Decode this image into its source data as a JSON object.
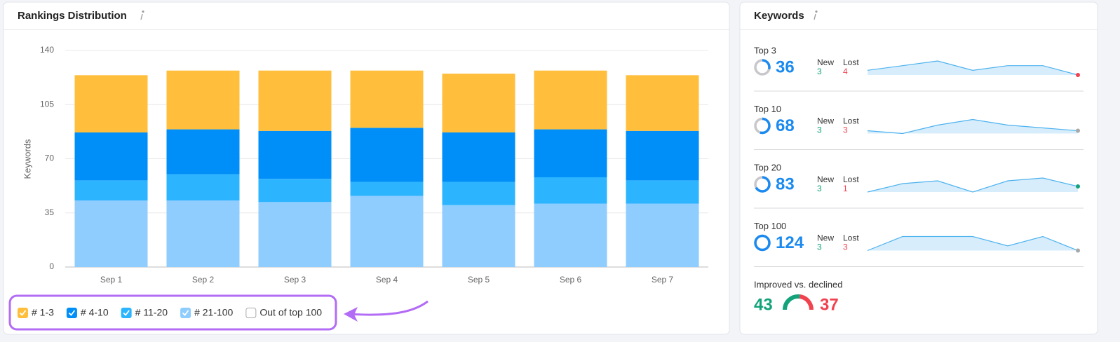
{
  "chart_data": {
    "type": "bar",
    "stacked": true,
    "title": "Rankings Distribution",
    "y_label": "Keywords",
    "categories": [
      "Sep 1",
      "Sep 2",
      "Sep 3",
      "Sep 4",
      "Sep 5",
      "Sep 6",
      "Sep 7"
    ],
    "series": [
      {
        "name": "# 1-3",
        "color": "#ffbf3c",
        "values": [
          37,
          38,
          39,
          37,
          38,
          38,
          36
        ]
      },
      {
        "name": "# 4-10",
        "color": "#008ff8",
        "values": [
          31,
          29,
          31,
          35,
          32,
          31,
          32
        ]
      },
      {
        "name": "# 11-20",
        "color": "#2db4ff",
        "values": [
          13,
          17,
          15,
          9,
          15,
          17,
          15
        ]
      },
      {
        "name": "# 21-100",
        "color": "#8fcdff",
        "values": [
          43,
          43,
          42,
          46,
          40,
          41,
          41
        ]
      }
    ],
    "legend_extra": "Out of top 100",
    "ylim": [
      0,
      140
    ],
    "yticks": [
      0,
      35,
      70,
      105,
      140
    ],
    "grid": true
  },
  "keywords": {
    "title": "Keywords",
    "rows": [
      {
        "label": "Top 3",
        "count": 36,
        "new_label": "New",
        "new": 3,
        "lost_label": "Lost",
        "lost": 4,
        "trend": [
          37,
          38,
          39,
          37,
          38,
          38,
          36
        ],
        "dot_color": "#f0434f"
      },
      {
        "label": "Top 10",
        "count": 68,
        "new_label": "New",
        "new": 3,
        "lost_label": "Lost",
        "lost": 3,
        "trend": [
          68,
          67,
          70,
          72,
          70,
          69,
          68
        ],
        "dot_color": "#a8a8a8"
      },
      {
        "label": "Top 20",
        "count": 83,
        "new_label": "New",
        "new": 3,
        "lost_label": "Lost",
        "lost": 1,
        "trend": [
          81,
          84,
          85,
          81,
          85,
          86,
          83
        ],
        "dot_color": "#12a37a"
      },
      {
        "label": "Top 100",
        "count": 124,
        "new_label": "New",
        "new": 3,
        "lost_label": "Lost",
        "lost": 3,
        "trend": [
          124,
          127,
          127,
          127,
          125,
          127,
          124
        ],
        "dot_color": "#a8a8a8"
      }
    ],
    "improved_label": "Improved vs. declined",
    "improved": 43,
    "declined": 37
  }
}
